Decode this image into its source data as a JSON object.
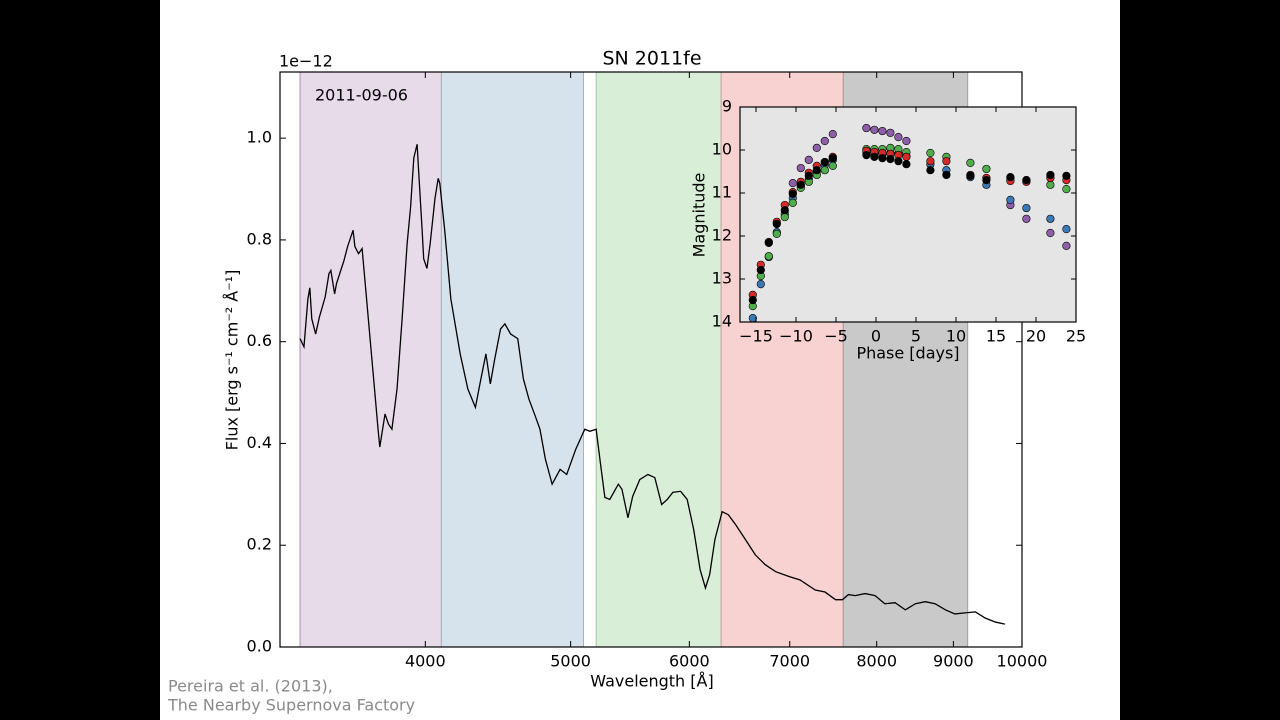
{
  "chart_data": [
    {
      "type": "line",
      "title": "SN 2011fe",
      "y_offset_label": "1e−12",
      "x_label": "Wavelength [Å]",
      "y_label": "Flux [erg s⁻¹ cm⁻² Å⁻¹]",
      "annotations": [
        "2011-09-06"
      ],
      "xscale": "log",
      "xlim": [
        3200,
        10000
      ],
      "xticks": [
        4000,
        5000,
        6000,
        7000,
        8000,
        9000,
        10000
      ],
      "ylim": [
        0,
        1.13
      ],
      "yticks": [
        {
          "value": 0,
          "label": "0.0"
        },
        0.2,
        0.4,
        0.6,
        0.8,
        {
          "value": 1,
          "label": "1.0"
        }
      ],
      "color": "#000000",
      "bands": [
        {
          "start": 3300,
          "end": 4100,
          "color": "#e7dbea",
          "edge": "#a993b0"
        },
        {
          "start": 4100,
          "end": 5100,
          "color": "#d6e2ec",
          "edge": "#9fb3c4"
        },
        {
          "start": 5200,
          "end": 6300,
          "color": "#d8eed7",
          "edge": "#a5c8a3"
        },
        {
          "start": 6300,
          "end": 7600,
          "color": "#f8d1d1",
          "edge": "#cf9c9c"
        },
        {
          "start": 7600,
          "end": 9200,
          "color": "#c9c9c9",
          "edge": "#9d9d9d"
        }
      ],
      "x": [
        3300,
        3320,
        3340,
        3350,
        3360,
        3380,
        3400,
        3430,
        3450,
        3460,
        3480,
        3490,
        3520,
        3530,
        3550,
        3580,
        3590,
        3610,
        3630,
        3650,
        3690,
        3720,
        3730,
        3760,
        3780,
        3800,
        3830,
        3860,
        3890,
        3910,
        3930,
        3950,
        3960,
        3980,
        3990,
        4010,
        4030,
        4060,
        4080,
        4090,
        4120,
        4160,
        4220,
        4270,
        4320,
        4350,
        4390,
        4420,
        4450,
        4490,
        4520,
        4560,
        4610,
        4650,
        4690,
        4730,
        4770,
        4810,
        4860,
        4920,
        4970,
        5040,
        5110,
        5150,
        5200,
        5230,
        5270,
        5310,
        5380,
        5410,
        5460,
        5500,
        5560,
        5630,
        5690,
        5750,
        5800,
        5850,
        5920,
        5980,
        6040,
        6100,
        6150,
        6190,
        6240,
        6310,
        6370,
        6440,
        6540,
        6640,
        6740,
        6850,
        7000,
        7110,
        7280,
        7390,
        7510,
        7590,
        7660,
        7740,
        7860,
        7980,
        8100,
        8230,
        8360,
        8490,
        8620,
        8750,
        8890,
        9020,
        9160,
        9310,
        9450,
        9600,
        9740
      ],
      "values": [
        0.606,
        0.59,
        0.684,
        0.706,
        0.645,
        0.615,
        0.649,
        0.688,
        0.734,
        0.74,
        0.694,
        0.714,
        0.748,
        0.759,
        0.787,
        0.819,
        0.787,
        0.773,
        0.783,
        0.704,
        0.546,
        0.428,
        0.393,
        0.458,
        0.438,
        0.428,
        0.507,
        0.645,
        0.793,
        0.862,
        0.961,
        0.988,
        0.931,
        0.822,
        0.763,
        0.744,
        0.793,
        0.882,
        0.921,
        0.911,
        0.822,
        0.684,
        0.576,
        0.507,
        0.471,
        0.517,
        0.576,
        0.517,
        0.566,
        0.625,
        0.635,
        0.615,
        0.606,
        0.527,
        0.487,
        0.458,
        0.428,
        0.369,
        0.32,
        0.349,
        0.339,
        0.389,
        0.428,
        0.424,
        0.428,
        0.369,
        0.294,
        0.29,
        0.32,
        0.31,
        0.254,
        0.296,
        0.329,
        0.339,
        0.333,
        0.28,
        0.29,
        0.304,
        0.306,
        0.29,
        0.231,
        0.152,
        0.116,
        0.142,
        0.211,
        0.266,
        0.26,
        0.241,
        0.211,
        0.181,
        0.162,
        0.148,
        0.138,
        0.132,
        0.112,
        0.108,
        0.093,
        0.093,
        0.103,
        0.101,
        0.105,
        0.101,
        0.085,
        0.087,
        0.073,
        0.085,
        0.089,
        0.085,
        0.073,
        0.065,
        0.067,
        0.069,
        0.057,
        0.049,
        0.045
      ]
    },
    {
      "type": "scatter",
      "x_label": "Phase [days]",
      "y_label": "Magnitude",
      "xlim": [
        -17,
        25
      ],
      "xticks": [
        {
          "value": -15,
          "label": "−15"
        },
        {
          "value": -10,
          "label": "−10"
        },
        {
          "value": -5,
          "label": "−5"
        },
        0,
        5,
        10,
        15,
        20,
        25
      ],
      "ylim": [
        14,
        9
      ],
      "yticks": [
        9,
        10,
        11,
        12,
        13,
        14
      ],
      "x": [
        -15.4,
        -14.4,
        -13.4,
        -12.4,
        -11.4,
        -10.4,
        -9.4,
        -8.4,
        -7.4,
        -6.4,
        -5.4,
        -1.2,
        -0.2,
        0.8,
        1.8,
        2.8,
        3.8,
        6.8,
        8.8,
        11.8,
        13.8,
        16.8,
        18.8,
        21.8,
        23.8
      ],
      "series": [
        {
          "color": "#8e5fa8",
          "values": [
            null,
            null,
            null,
            null,
            null,
            10.77,
            10.42,
            10.23,
            9.95,
            9.79,
            9.63,
            9.49,
            9.53,
            9.56,
            9.6,
            9.7,
            9.79,
            null,
            null,
            null,
            null,
            11.28,
            11.6,
            11.93,
            12.23
          ]
        },
        {
          "color": "#3b78b8",
          "values": [
            13.91,
            13.12,
            12.49,
            11.91,
            11.49,
            11.12,
            10.84,
            10.67,
            10.49,
            10.35,
            10.23,
            10.05,
            10.07,
            10.09,
            10.07,
            10.09,
            10.14,
            10.33,
            10.47,
            10.63,
            10.81,
            11.16,
            11.35,
            11.6,
            11.84
          ]
        },
        {
          "color": "#4fae4a",
          "values": [
            13.63,
            12.93,
            12.47,
            11.95,
            11.56,
            11.23,
            10.88,
            10.74,
            10.58,
            10.47,
            10.37,
            9.98,
            9.98,
            9.98,
            9.95,
            9.98,
            10.05,
            10.07,
            10.16,
            10.3,
            10.44,
            10.65,
            10.7,
            10.81,
            10.91
          ]
        },
        {
          "color": "#d62a28",
          "values": [
            13.37,
            12.67,
            12.14,
            11.67,
            11.28,
            10.98,
            10.74,
            10.53,
            10.37,
            10.28,
            10.16,
            10.02,
            10.05,
            10.07,
            10.09,
            10.12,
            10.16,
            10.26,
            10.26,
            10.58,
            10.65,
            10.72,
            10.74,
            10.65,
            10.7
          ]
        },
        {
          "color": "#000000",
          "values": [
            13.49,
            12.79,
            12.16,
            11.72,
            11.4,
            11.02,
            10.81,
            10.6,
            10.47,
            10.28,
            10.19,
            10.12,
            10.16,
            10.19,
            10.21,
            10.26,
            10.33,
            10.47,
            10.58,
            10.6,
            10.7,
            10.63,
            10.7,
            10.58,
            10.6
          ]
        }
      ]
    }
  ],
  "credit": [
    "Pereira et al. (2013),",
    "The Nearby Supernova Factory"
  ]
}
